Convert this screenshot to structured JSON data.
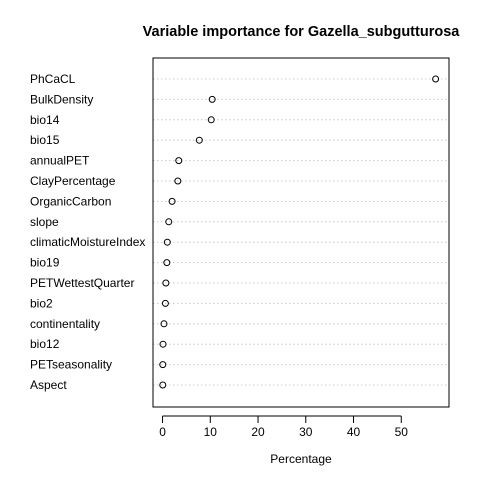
{
  "chart_data": {
    "type": "scatter",
    "title": "Variable importance for Gazella_subgutturosa",
    "xlabel": "Percentage",
    "ylabel": "",
    "xlim": [
      -2,
      60
    ],
    "xticks": [
      0,
      10,
      20,
      30,
      40,
      50
    ],
    "grid": "dotted horizontal guide lines",
    "categories": [
      "PhCaCL",
      "BulkDensity",
      "bio14",
      "bio15",
      "annualPET",
      "ClayPercentage",
      "OrganicCarbon",
      "slope",
      "climaticMoistureIndex",
      "bio19",
      "PETWettestQuarter",
      "bio2",
      "continentality",
      "bio12",
      "PETseasonality",
      "Aspect"
    ],
    "values": [
      57.2,
      10.4,
      10.2,
      7.7,
      3.4,
      3.2,
      2.0,
      1.3,
      1.0,
      0.9,
      0.7,
      0.6,
      0.3,
      0.1,
      0.05,
      0.05
    ]
  }
}
